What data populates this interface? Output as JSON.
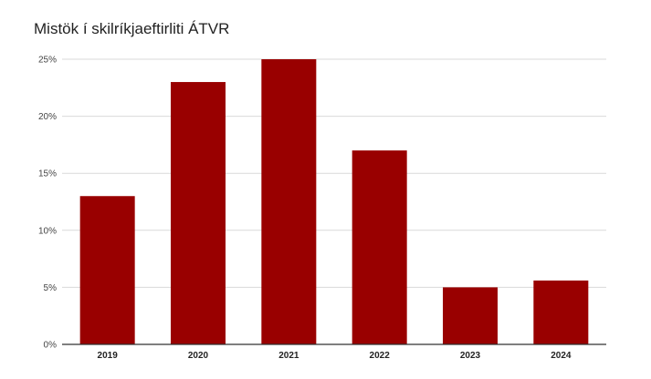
{
  "chart_data": {
    "type": "bar",
    "title": "Mistök í skilríkjaeftirliti ÁTVR",
    "categories": [
      "2019",
      "2020",
      "2021",
      "2022",
      "2023",
      "2024"
    ],
    "values": [
      13,
      23,
      25,
      17,
      5,
      5.6
    ],
    "value_unit": "%",
    "yticks": [
      "0%",
      "5%",
      "10%",
      "15%",
      "20%",
      "25%"
    ],
    "ylim": [
      0,
      25
    ],
    "grid": true,
    "bar_color": "#990000"
  }
}
